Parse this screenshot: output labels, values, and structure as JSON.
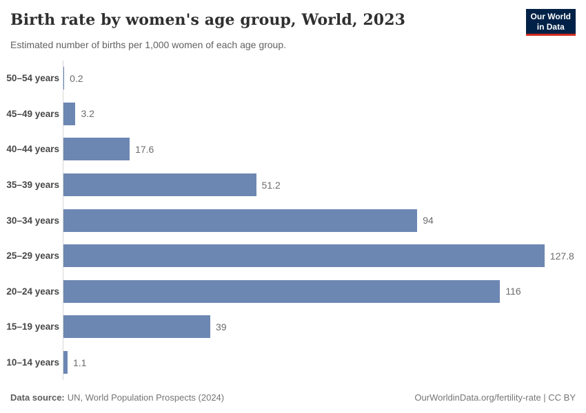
{
  "header": {
    "title": "Birth rate by women's age group, World, 2023",
    "subtitle": "Estimated number of births per 1,000 women of each age group."
  },
  "logo": {
    "line1": "Our World",
    "line2": "in Data"
  },
  "chart_data": {
    "type": "bar",
    "orientation": "horizontal",
    "title": "Birth rate by women's age group, World, 2023",
    "subtitle": "Estimated number of births per 1,000 women of each age group.",
    "unit": "births per 1,000 women",
    "categories": [
      "50–54 years",
      "45–49 years",
      "40–44 years",
      "35–39 years",
      "30–34 years",
      "25–29 years",
      "20–24 years",
      "15–19 years",
      "10–14 years"
    ],
    "values": [
      0.2,
      3.2,
      17.6,
      51.2,
      94,
      127.8,
      116,
      39,
      1.1
    ],
    "value_labels": [
      "0.2",
      "3.2",
      "17.6",
      "51.2",
      "94",
      "127.8",
      "116",
      "39",
      "1.1"
    ],
    "xlim": [
      0,
      136
    ],
    "grid": false,
    "legend": "none"
  },
  "colors": {
    "bar": "#6d87b3",
    "axis_line": "#d6d6d6",
    "logo_bg": "#002147",
    "logo_accent": "#d12b1f"
  },
  "footer": {
    "source_label": "Data source:",
    "source_text": "UN, World Population Prospects (2024)",
    "credit": "OurWorldinData.org/fertility-rate | CC BY"
  }
}
